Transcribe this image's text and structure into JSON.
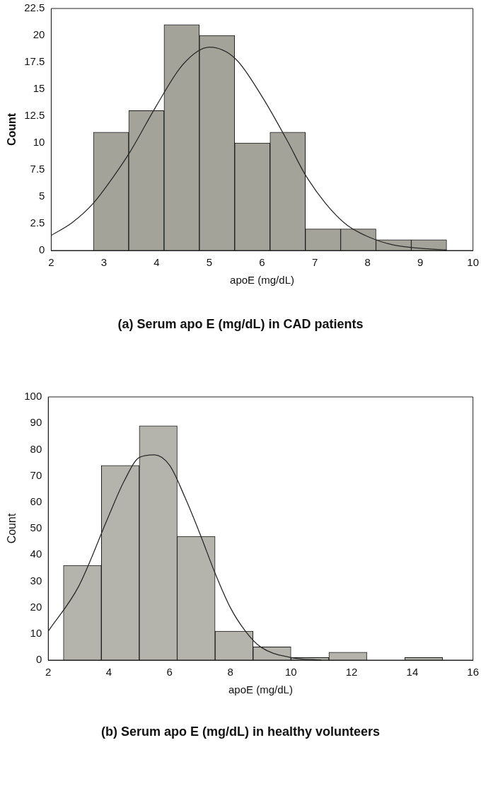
{
  "chart_data": [
    {
      "type": "histogram",
      "title": "(a) Serum apo E (mg/dL) in CAD patients",
      "xlabel": "apoE (mg/dL)",
      "ylabel": "Count",
      "bins": [
        2.8,
        3.47,
        4.14,
        4.81,
        5.48,
        6.15,
        6.82,
        7.49,
        8.16,
        8.83,
        9.5
      ],
      "values": [
        11,
        13,
        21,
        20,
        10,
        11,
        2,
        2,
        1,
        1
      ],
      "color": "#a3a39a",
      "xlim": [
        2,
        10
      ],
      "xticks": [
        2,
        3,
        4,
        5,
        6,
        7,
        8,
        9,
        10
      ],
      "ylim": [
        0,
        22.5
      ],
      "yticks": [
        0,
        2.5,
        5,
        7.5,
        10,
        12.5,
        15,
        17.5,
        20,
        22.5
      ],
      "series": [
        {
          "type": "line",
          "color": "#2a2a2a",
          "x": [
            2,
            2.4,
            2.8,
            3.2,
            3.5,
            4,
            4.5,
            5,
            5.5,
            6,
            6.5,
            6.8,
            7.2,
            7.6,
            8,
            8.5,
            9,
            9.5
          ],
          "values": [
            1.4,
            2.6,
            4.4,
            7,
            9.2,
            13.5,
            17.3,
            18.9,
            17.8,
            14.3,
            10,
            7.2,
            4.4,
            2.4,
            1.3,
            0.5,
            0.2,
            0.05
          ]
        }
      ]
    },
    {
      "type": "histogram",
      "title": "(b) Serum apo E (mg/dL) in healthy volunteers",
      "xlabel": "apoE (mg/dL)",
      "ylabel": "Count",
      "bins": [
        2.5,
        3.75,
        5,
        6.25,
        7.5,
        8.75,
        10,
        11.25,
        12.5,
        13.75,
        15
      ],
      "values": [
        36,
        74,
        89,
        47,
        11,
        5,
        1,
        3,
        0,
        1
      ],
      "color": "#b4b4ac",
      "xlim": [
        2,
        16
      ],
      "xticks": [
        2,
        4,
        6,
        8,
        10,
        12,
        14,
        16
      ],
      "ylim": [
        0,
        100
      ],
      "yticks": [
        0,
        10,
        20,
        30,
        40,
        50,
        60,
        70,
        80,
        90,
        100
      ],
      "series": [
        {
          "type": "line",
          "color": "#2a2a2a",
          "x": [
            2,
            3,
            4,
            4.5,
            5,
            5.5,
            6,
            6.5,
            7,
            7.5,
            8,
            8.5,
            9,
            10,
            11
          ],
          "values": [
            11,
            28,
            55,
            68,
            77,
            78,
            74,
            62,
            48,
            33,
            20,
            11,
            5,
            1,
            0
          ]
        }
      ]
    }
  ]
}
